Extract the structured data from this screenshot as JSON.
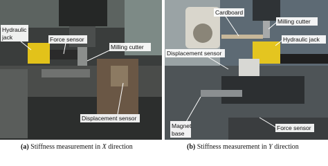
{
  "panels": [
    {
      "caption": {
        "label": "(a)",
        "text": "Stiffness measurement in",
        "axis": "X",
        "suffix": "direction"
      },
      "annotations": [
        {
          "lines": [
            "Hydraulic",
            "jack"
          ]
        },
        {
          "lines": [
            "Force sensor"
          ]
        },
        {
          "lines": [
            "Milling cutter"
          ]
        },
        {
          "lines": [
            "Displacement sensor"
          ]
        }
      ]
    },
    {
      "caption": {
        "label": "(b)",
        "text": "Stiffness measurement in",
        "axis": "Y",
        "suffix": "direction"
      },
      "annotations": [
        {
          "lines": [
            "Cardboard"
          ]
        },
        {
          "lines": [
            "Milling cutter"
          ]
        },
        {
          "lines": [
            "Hydraulic jack"
          ]
        },
        {
          "lines": [
            "Displacement sensor"
          ]
        },
        {
          "lines": [
            "Magnet",
            "base"
          ]
        },
        {
          "lines": [
            "Force sensor"
          ]
        }
      ]
    }
  ]
}
